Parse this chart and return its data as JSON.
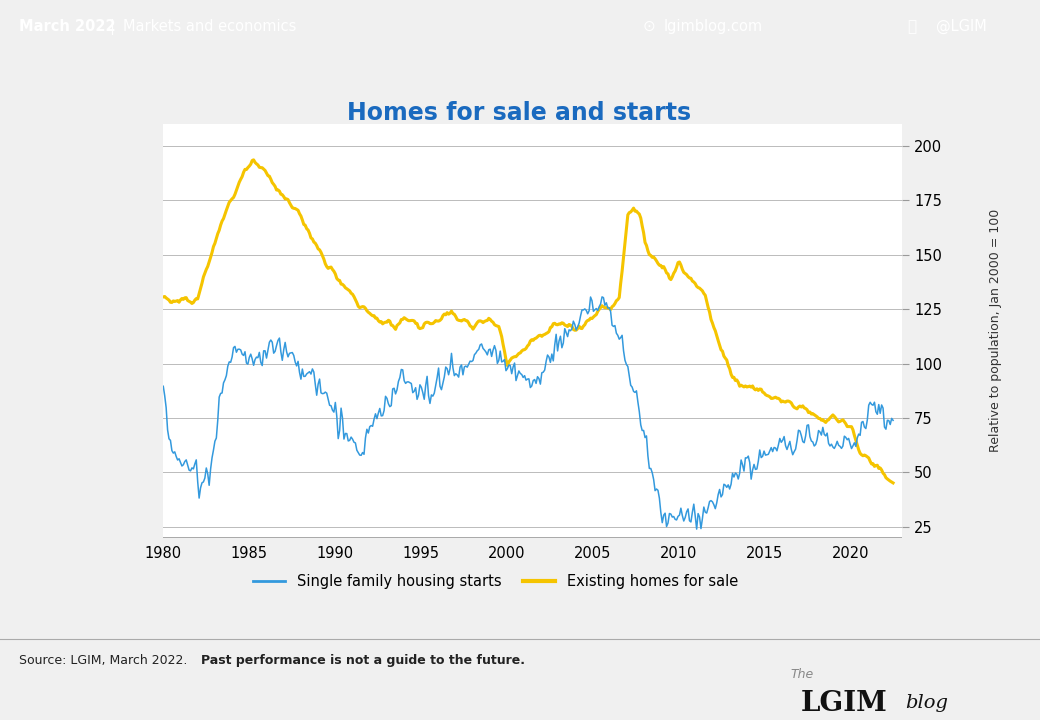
{
  "title": "Homes for sale and starts",
  "header_bg": "#2288cc",
  "header_text_left": "March 2022   |   Markets and economics",
  "header_text_right": "@LGIM",
  "header_text_mid": "lgimblog.com",
  "footer_source": "Source: LGIM, March 2022. ",
  "footer_bold": "Past performance is not a guide to the future.",
  "ylabel_right": "Relative to population, Jan 2000 = 100",
  "legend_blue": "Single family housing starts",
  "legend_yellow": "Existing homes for sale",
  "color_blue": "#3399dd",
  "color_yellow": "#f5c400",
  "xlim": [
    1980,
    2023
  ],
  "ylim": [
    20,
    210
  ],
  "yticks": [
    25,
    50,
    75,
    100,
    125,
    150,
    175,
    200
  ],
  "xticks": [
    1980,
    1985,
    1990,
    1995,
    2000,
    2005,
    2010,
    2015,
    2020
  ],
  "title_color": "#1a6abf",
  "title_fontsize": 17,
  "bg_color": "#f0f0f0",
  "plot_bg": "#ffffff",
  "grid_color": "#bbbbbb",
  "blue_keypoints": [
    [
      1980.0,
      88
    ],
    [
      1980.4,
      62
    ],
    [
      1980.8,
      55
    ],
    [
      1981.2,
      55
    ],
    [
      1981.8,
      52
    ],
    [
      1982.3,
      46
    ],
    [
      1982.8,
      48
    ],
    [
      1983.3,
      88
    ],
    [
      1983.8,
      100
    ],
    [
      1984.3,
      107
    ],
    [
      1984.8,
      103
    ],
    [
      1985.3,
      104
    ],
    [
      1985.8,
      102
    ],
    [
      1986.2,
      108
    ],
    [
      1986.7,
      110
    ],
    [
      1987.2,
      105
    ],
    [
      1987.7,
      100
    ],
    [
      1988.2,
      97
    ],
    [
      1988.7,
      93
    ],
    [
      1989.2,
      88
    ],
    [
      1989.7,
      82
    ],
    [
      1990.2,
      74
    ],
    [
      1990.7,
      68
    ],
    [
      1991.2,
      63
    ],
    [
      1991.5,
      60
    ],
    [
      1992.0,
      70
    ],
    [
      1992.5,
      78
    ],
    [
      1993.0,
      83
    ],
    [
      1993.5,
      88
    ],
    [
      1994.0,
      93
    ],
    [
      1994.5,
      90
    ],
    [
      1995.0,
      85
    ],
    [
      1995.5,
      86
    ],
    [
      1996.0,
      93
    ],
    [
      1996.5,
      96
    ],
    [
      1997.0,
      96
    ],
    [
      1997.5,
      98
    ],
    [
      1998.0,
      105
    ],
    [
      1998.5,
      108
    ],
    [
      1999.0,
      108
    ],
    [
      1999.5,
      105
    ],
    [
      2000.0,
      100
    ],
    [
      2000.5,
      97
    ],
    [
      2001.0,
      94
    ],
    [
      2001.5,
      91
    ],
    [
      2002.0,
      98
    ],
    [
      2002.5,
      104
    ],
    [
      2003.0,
      110
    ],
    [
      2003.5,
      114
    ],
    [
      2004.0,
      120
    ],
    [
      2004.5,
      123
    ],
    [
      2005.0,
      126
    ],
    [
      2005.5,
      128
    ],
    [
      2006.0,
      122
    ],
    [
      2006.5,
      115
    ],
    [
      2007.0,
      100
    ],
    [
      2007.3,
      90
    ],
    [
      2007.8,
      72
    ],
    [
      2008.2,
      58
    ],
    [
      2008.7,
      42
    ],
    [
      2009.0,
      30
    ],
    [
      2009.5,
      28
    ],
    [
      2010.0,
      30
    ],
    [
      2010.5,
      29
    ],
    [
      2011.0,
      29
    ],
    [
      2011.5,
      31
    ],
    [
      2012.0,
      35
    ],
    [
      2012.5,
      40
    ],
    [
      2013.0,
      48
    ],
    [
      2013.5,
      52
    ],
    [
      2014.0,
      54
    ],
    [
      2014.5,
      55
    ],
    [
      2015.0,
      58
    ],
    [
      2015.5,
      60
    ],
    [
      2016.0,
      62
    ],
    [
      2016.5,
      63
    ],
    [
      2017.0,
      64
    ],
    [
      2017.5,
      65
    ],
    [
      2018.0,
      65
    ],
    [
      2018.5,
      63
    ],
    [
      2019.0,
      62
    ],
    [
      2019.5,
      65
    ],
    [
      2020.0,
      63
    ],
    [
      2020.3,
      58
    ],
    [
      2020.7,
      72
    ],
    [
      2021.0,
      78
    ],
    [
      2021.3,
      82
    ],
    [
      2021.7,
      80
    ],
    [
      2022.0,
      75
    ],
    [
      2022.3,
      72
    ]
  ],
  "yellow_keypoints": [
    [
      1980.0,
      132
    ],
    [
      1980.5,
      128
    ],
    [
      1982.0,
      130
    ],
    [
      1982.5,
      142
    ],
    [
      1983.0,
      155
    ],
    [
      1983.5,
      168
    ],
    [
      1984.2,
      178
    ],
    [
      1984.7,
      188
    ],
    [
      1985.2,
      192
    ],
    [
      1985.5,
      193
    ],
    [
      1986.0,
      187
    ],
    [
      1986.5,
      183
    ],
    [
      1987.0,
      178
    ],
    [
      1987.5,
      172
    ],
    [
      1988.0,
      167
    ],
    [
      1988.5,
      160
    ],
    [
      1989.0,
      152
    ],
    [
      1989.5,
      145
    ],
    [
      1990.0,
      140
    ],
    [
      1990.5,
      136
    ],
    [
      1991.0,
      131
    ],
    [
      1991.5,
      127
    ],
    [
      1992.0,
      124
    ],
    [
      1992.5,
      121
    ],
    [
      1993.0,
      119
    ],
    [
      1993.5,
      117
    ],
    [
      1994.0,
      121
    ],
    [
      1994.5,
      119
    ],
    [
      1995.0,
      117
    ],
    [
      1995.5,
      119
    ],
    [
      1996.0,
      122
    ],
    [
      1996.5,
      124
    ],
    [
      1997.0,
      121
    ],
    [
      1997.5,
      119
    ],
    [
      1998.0,
      117
    ],
    [
      1998.5,
      119
    ],
    [
      1999.0,
      121
    ],
    [
      1999.5,
      117
    ],
    [
      2000.0,
      100
    ],
    [
      2000.5,
      104
    ],
    [
      2001.0,
      107
    ],
    [
      2001.5,
      111
    ],
    [
      2002.0,
      114
    ],
    [
      2002.5,
      117
    ],
    [
      2003.0,
      119
    ],
    [
      2003.5,
      117
    ],
    [
      2004.0,
      116
    ],
    [
      2004.5,
      119
    ],
    [
      2005.0,
      121
    ],
    [
      2005.5,
      127
    ],
    [
      2006.0,
      125
    ],
    [
      2006.5,
      130
    ],
    [
      2007.0,
      168
    ],
    [
      2007.3,
      172
    ],
    [
      2007.7,
      168
    ],
    [
      2008.0,
      155
    ],
    [
      2008.5,
      148
    ],
    [
      2009.0,
      143
    ],
    [
      2009.5,
      138
    ],
    [
      2010.0,
      146
    ],
    [
      2010.5,
      140
    ],
    [
      2011.0,
      136
    ],
    [
      2011.5,
      130
    ],
    [
      2012.0,
      116
    ],
    [
      2012.5,
      106
    ],
    [
      2013.0,
      96
    ],
    [
      2013.5,
      90
    ],
    [
      2014.0,
      90
    ],
    [
      2014.5,
      88
    ],
    [
      2015.0,
      86
    ],
    [
      2015.5,
      85
    ],
    [
      2016.0,
      83
    ],
    [
      2016.5,
      81
    ],
    [
      2017.0,
      80
    ],
    [
      2017.5,
      78
    ],
    [
      2018.0,
      76
    ],
    [
      2018.5,
      74
    ],
    [
      2019.0,
      75
    ],
    [
      2019.5,
      73
    ],
    [
      2020.0,
      70
    ],
    [
      2020.5,
      60
    ],
    [
      2021.0,
      56
    ],
    [
      2021.5,
      53
    ],
    [
      2022.0,
      50
    ],
    [
      2022.3,
      46
    ]
  ]
}
